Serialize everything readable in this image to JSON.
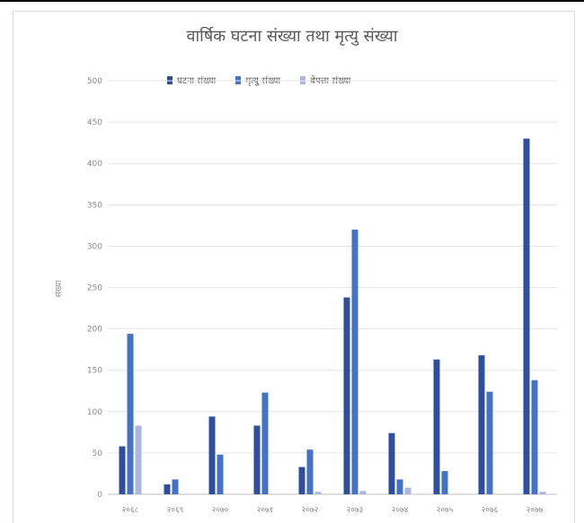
{
  "chart_data": {
    "type": "bar",
    "title": "वार्षिक घटना संख्या तथा मृत्यु संख्या",
    "ylabel": "संख्या",
    "xlabel": "",
    "ylim": [
      0,
      500
    ],
    "yticks": [
      "0",
      "50",
      "100",
      "150",
      "200",
      "250",
      "300",
      "350",
      "400",
      "450",
      "500"
    ],
    "categories": [
      "२०६८",
      "२०६९",
      "२०७०",
      "२०७१",
      "२०७२",
      "२०७३",
      "२०७४",
      "२०७५",
      "२०७६",
      "२०७७"
    ],
    "series": [
      {
        "name": "घटना संख्या",
        "color": "#2f4f9e",
        "values": [
          58,
          12,
          94,
          83,
          33,
          238,
          74,
          163,
          168,
          430
        ]
      },
      {
        "name": "मृत्यु संख्या",
        "color": "#4472c4",
        "values": [
          194,
          18,
          48,
          123,
          54,
          320,
          18,
          28,
          124,
          138
        ]
      },
      {
        "name": "बेपत्ता संख्या",
        "color": "#a9b8df",
        "values": [
          83,
          0,
          0,
          0,
          3,
          4,
          8,
          0,
          0,
          3
        ]
      }
    ],
    "grid": true,
    "legend": "top"
  }
}
